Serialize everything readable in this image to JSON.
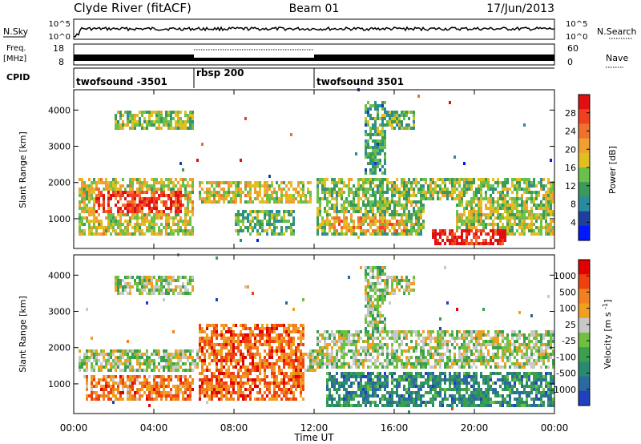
{
  "header": {
    "title": "Clyde River (fitACF)",
    "beam": "Beam 01",
    "date": "17/Jun/2013"
  },
  "nsky_panel": {
    "left_label": "N.Sky",
    "left_ticks": [
      "10^5",
      "10^0"
    ],
    "right_ticks": [
      "10^5",
      "10^0"
    ],
    "right_label": "N.Search"
  },
  "freq_panel": {
    "left_label_1": "Freq.",
    "left_label_2": "[MHz]",
    "left_ticks": [
      "18",
      "8"
    ],
    "right_ticks": [
      "60",
      "0"
    ],
    "right_label": "Nave"
  },
  "cpid_panel": {
    "label": "CPID",
    "segments": [
      {
        "name": "twofsound -3501",
        "start_hour": 0,
        "end_hour": 6
      },
      {
        "name": "rbsp 200",
        "start_hour": 6,
        "end_hour": 12
      },
      {
        "name": "twofsound 3501",
        "start_hour": 12,
        "end_hour": 24
      }
    ]
  },
  "chart_data": [
    {
      "type": "heatmap",
      "quantity": "power",
      "ylabel": "Slant Range [km]",
      "yticks": [
        1000,
        2000,
        3000,
        4000
      ],
      "ylim": [
        180,
        4560
      ],
      "xlim": [
        0,
        24
      ],
      "colorbar": {
        "label": "Power [dB]",
        "ticks": [
          "4",
          "8",
          "12",
          "16",
          "20",
          "24",
          "28"
        ],
        "colors": [
          "#0018ff",
          "#1f3f9f",
          "#2a8aa0",
          "#3b9a5a",
          "#6bc04a",
          "#e0c020",
          "#f0a030",
          "#f07030",
          "#f04020",
          "#e01010"
        ]
      },
      "regions": [
        {
          "t0": 0.2,
          "t1": 6.0,
          "r0": 500,
          "r1": 2100,
          "intensity": 0.55
        },
        {
          "t0": 1.0,
          "t1": 5.5,
          "r0": 1100,
          "r1": 1700,
          "intensity": 0.85
        },
        {
          "t0": 6.2,
          "t1": 11.8,
          "r0": 1400,
          "r1": 2000,
          "intensity": 0.55
        },
        {
          "t0": 8.0,
          "t1": 11.0,
          "r0": 500,
          "r1": 1200,
          "intensity": 0.4
        },
        {
          "t0": 12.0,
          "t1": 17.5,
          "r0": 500,
          "r1": 2100,
          "intensity": 0.45
        },
        {
          "t0": 12.5,
          "t1": 16.5,
          "r0": 600,
          "r1": 1000,
          "intensity": 0.65
        },
        {
          "t0": 17.5,
          "t1": 24.0,
          "r0": 1500,
          "r1": 2100,
          "intensity": 0.45
        },
        {
          "t0": 17.8,
          "t1": 21.5,
          "r0": 200,
          "r1": 700,
          "intensity": 0.95
        },
        {
          "t0": 19.0,
          "t1": 24.0,
          "r0": 500,
          "r1": 1600,
          "intensity": 0.5
        },
        {
          "t0": 2.0,
          "t1": 6.0,
          "r0": 3400,
          "r1": 3900,
          "intensity": 0.45
        },
        {
          "t0": 15.0,
          "t1": 17.0,
          "r0": 3400,
          "r1": 3900,
          "intensity": 0.4
        },
        {
          "t0": 14.5,
          "t1": 15.5,
          "r0": 2200,
          "r1": 4200,
          "intensity": 0.35
        }
      ]
    },
    {
      "type": "heatmap",
      "quantity": "velocity",
      "xlabel": "Time UT",
      "ylabel": "Slant Range [km]",
      "yticks": [
        1000,
        2000,
        3000,
        4000
      ],
      "ylim": [
        180,
        4560
      ],
      "xlim": [
        0,
        24
      ],
      "xticks": [
        "00:00",
        "04:00",
        "08:00",
        "12:00",
        "16:00",
        "20:00",
        "00:00"
      ],
      "colorbar": {
        "label": "Velocity [m s^-1]",
        "ticks": [
          "1000",
          "500",
          "100",
          "25",
          "-25",
          "-100",
          "-500",
          "-1000"
        ],
        "colors": [
          "#2040c0",
          "#2a6aa0",
          "#2a8a70",
          "#3aa050",
          "#70c040",
          "#c8c8c8",
          "#f0a020",
          "#f08020",
          "#f04010",
          "#e00000"
        ]
      },
      "regions": [
        {
          "t0": 0.2,
          "t1": 12.0,
          "r0": 1300,
          "r1": 1900,
          "intensity": 0.5
        },
        {
          "t0": 0.5,
          "t1": 6.0,
          "r0": 500,
          "r1": 1200,
          "intensity": 0.75
        },
        {
          "t0": 6.2,
          "t1": 11.5,
          "r0": 500,
          "r1": 2600,
          "intensity": 0.78
        },
        {
          "t0": 12.0,
          "t1": 24.0,
          "r0": 1400,
          "r1": 2400,
          "intensity": 0.5
        },
        {
          "t0": 12.5,
          "t1": 24.0,
          "r0": 300,
          "r1": 1300,
          "intensity": 0.25
        },
        {
          "t0": 2.0,
          "t1": 6.0,
          "r0": 3400,
          "r1": 3900,
          "intensity": 0.5
        },
        {
          "t0": 15.0,
          "t1": 17.0,
          "r0": 3400,
          "r1": 3900,
          "intensity": 0.5
        },
        {
          "t0": 14.5,
          "t1": 15.5,
          "r0": 2200,
          "r1": 4200,
          "intensity": 0.45
        }
      ]
    }
  ]
}
